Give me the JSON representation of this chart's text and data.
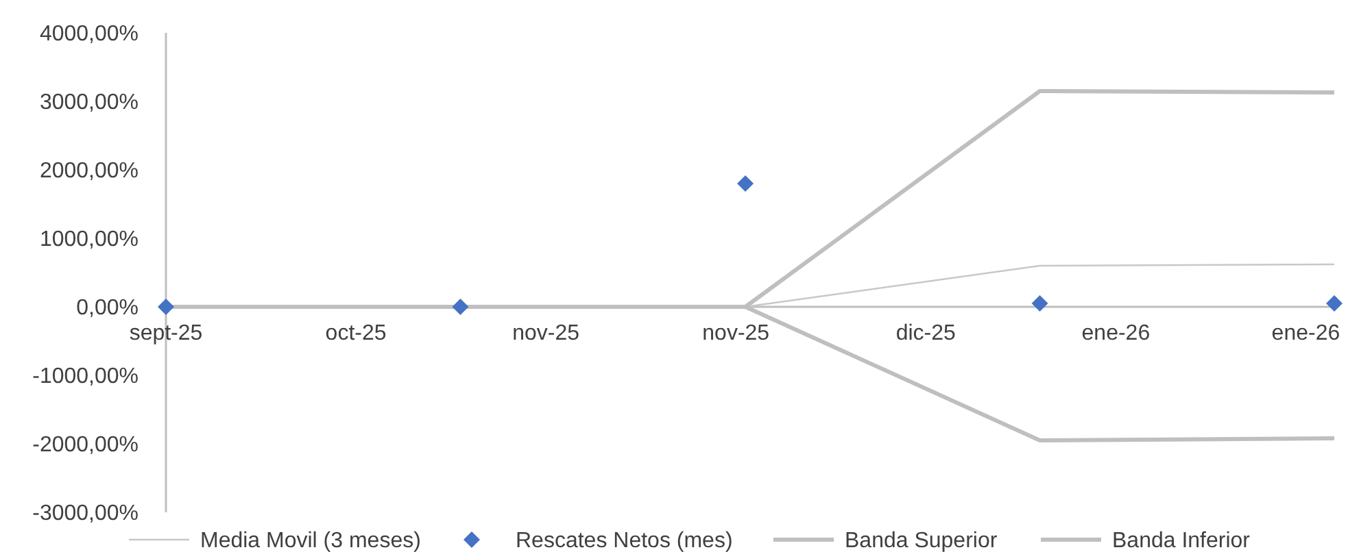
{
  "chart_data": {
    "type": "line",
    "x": [
      "2025-09-30",
      "2025-10-31",
      "2025-11-30",
      "2025-12-31",
      "2026-01-31"
    ],
    "xlim": [
      "2025-09-30",
      "2026-01-31"
    ],
    "xticks": [
      {
        "value": "2025-09-30",
        "label": "sept-25"
      },
      {
        "value": "2025-10-20",
        "label": "oct-25"
      },
      {
        "value": "2025-11-09",
        "label": "nov-25"
      },
      {
        "value": "2025-11-29",
        "label": "nov-25"
      },
      {
        "value": "2025-12-19",
        "label": "dic-25"
      },
      {
        "value": "2026-01-08",
        "label": "ene-26"
      },
      {
        "value": "2026-01-28",
        "label": "ene-26"
      }
    ],
    "ylim": [
      -3000,
      4000
    ],
    "yticks": [
      {
        "value": -3000,
        "label": "-3000,00%"
      },
      {
        "value": -2000,
        "label": "-2000,00%"
      },
      {
        "value": -1000,
        "label": "-1000,00%"
      },
      {
        "value": 0,
        "label": "0,00%"
      },
      {
        "value": 1000,
        "label": "1000,00%"
      },
      {
        "value": 2000,
        "label": "2000,00%"
      },
      {
        "value": 3000,
        "label": "3000,00%"
      },
      {
        "value": 4000,
        "label": "4000,00%"
      }
    ],
    "grid": false,
    "legend": "bottom",
    "series": [
      {
        "name": "Media Movil (3 meses)",
        "color": "#c8c8c8",
        "values": [
          0,
          0,
          0,
          600,
          620
        ]
      },
      {
        "name": "Rescates Netos (mes)",
        "type": "scatter",
        "marker": "diamond",
        "color": "#4472c4",
        "values": [
          0,
          0,
          1800,
          50,
          50
        ]
      },
      {
        "name": "Banda Superior",
        "color": "#bfbfbf",
        "values": [
          0,
          0,
          0,
          3150,
          3130
        ]
      },
      {
        "name": "Banda Inferior",
        "color": "#bfbfbf",
        "values": [
          0,
          0,
          0,
          -1950,
          -1920
        ]
      }
    ]
  }
}
